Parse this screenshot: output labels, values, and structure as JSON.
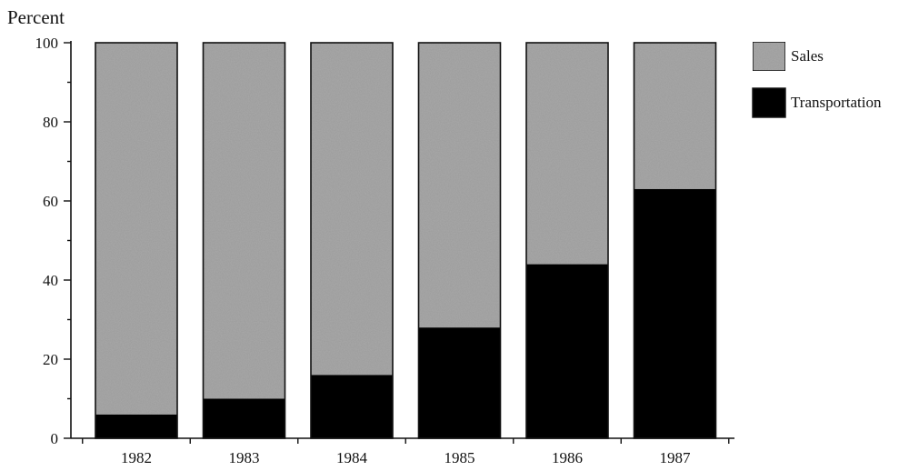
{
  "chart_data": {
    "type": "bar",
    "stacked": true,
    "title": "",
    "xlabel": "",
    "ylabel": "Percent",
    "ylim": [
      0,
      100
    ],
    "yticks": [
      0,
      20,
      40,
      60,
      80,
      100
    ],
    "categories": [
      "1982",
      "1983",
      "1984",
      "1985",
      "1986",
      "1987"
    ],
    "series": [
      {
        "name": "Transportation",
        "values": [
          6,
          10,
          16,
          28,
          44,
          63
        ],
        "color": "#000000"
      },
      {
        "name": "Sales",
        "values": [
          94,
          90,
          84,
          72,
          56,
          37
        ],
        "color": "#a9a9a9"
      }
    ],
    "legend": {
      "position": "top-right",
      "items": [
        "Sales",
        "Transportation"
      ]
    },
    "grid": false
  }
}
